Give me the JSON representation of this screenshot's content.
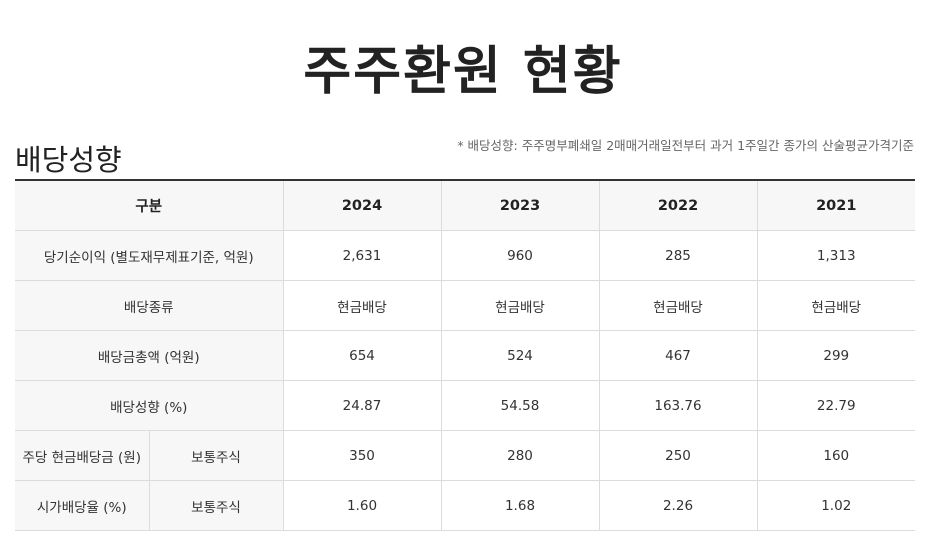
{
  "page": {
    "title": "주주환원 현황"
  },
  "section": {
    "title": "배당성향",
    "note": "* 배당성향: 주주명부폐쇄일 2매매거래일전부터 과거 1주일간 종가의 산술평균가격기준"
  },
  "table": {
    "header": {
      "label": "구분",
      "years": [
        "2024",
        "2023",
        "2022",
        "2021"
      ]
    },
    "rows": [
      {
        "label": "당기순이익 (별도재무제표기준, 억원)",
        "values": [
          "2,631",
          "960",
          "285",
          "1,313"
        ]
      },
      {
        "label": "배당종류",
        "values": [
          "현금배당",
          "현금배당",
          "현금배당",
          "현금배당"
        ]
      },
      {
        "label": "배당금총액 (억원)",
        "values": [
          "654",
          "524",
          "467",
          "299"
        ]
      },
      {
        "label": "배당성향 (%)",
        "values": [
          "24.87",
          "54.58",
          "163.76",
          "22.79"
        ]
      },
      {
        "label": "주당 현금배당금 (원)",
        "sublabel": "보통주식",
        "values": [
          "350",
          "280",
          "250",
          "160"
        ]
      },
      {
        "label": "시가배당율 (%)",
        "sublabel": "보통주식",
        "values": [
          "1.60",
          "1.68",
          "2.26",
          "1.02"
        ]
      }
    ]
  }
}
